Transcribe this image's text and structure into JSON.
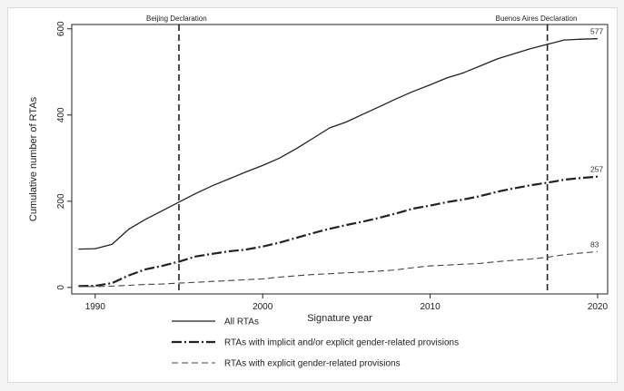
{
  "chart_data": {
    "type": "line",
    "xlabel": "Signature year",
    "ylabel": "Cumulative number of RTAs",
    "xlim": [
      1988.6,
      2020.6
    ],
    "ylim": [
      -15,
      610
    ],
    "x_ticks": [
      1990,
      2000,
      2010,
      2020
    ],
    "y_ticks": [
      0,
      200,
      400,
      600
    ],
    "grid": false,
    "legend_position": "bottom",
    "annotations": [
      {
        "label": "Beijing Declaration",
        "x": 1995
      },
      {
        "label": "Buenos Aires Declaration",
        "x": 2017
      }
    ],
    "series": [
      {
        "name": "All RTAs",
        "style": "solid",
        "end_label": "577",
        "x": [
          1989,
          1990,
          1991,
          1992,
          1993,
          1994,
          1995,
          1996,
          1997,
          1998,
          1999,
          2000,
          2001,
          2002,
          2003,
          2004,
          2005,
          2006,
          2007,
          2008,
          2009,
          2010,
          2011,
          2012,
          2013,
          2014,
          2015,
          2016,
          2017,
          2018,
          2019,
          2020
        ],
        "y": [
          89,
          90,
          100,
          135,
          158,
          178,
          198,
          218,
          236,
          252,
          268,
          283,
          300,
          322,
          346,
          370,
          384,
          402,
          420,
          438,
          455,
          470,
          486,
          498,
          514,
          530,
          542,
          554,
          564,
          574,
          576,
          577
        ]
      },
      {
        "name": "RTAs with implicit and/or explicit gender-related provisions",
        "style": "dashdot",
        "end_label": "257",
        "x": [
          1989,
          1990,
          1991,
          1992,
          1993,
          1994,
          1995,
          1996,
          1997,
          1998,
          1999,
          2000,
          2001,
          2002,
          2003,
          2004,
          2005,
          2006,
          2007,
          2008,
          2009,
          2010,
          2011,
          2012,
          2013,
          2014,
          2015,
          2016,
          2017,
          2018,
          2019,
          2020
        ],
        "y": [
          3,
          4,
          10,
          28,
          42,
          50,
          60,
          72,
          78,
          84,
          88,
          95,
          104,
          115,
          126,
          136,
          145,
          153,
          162,
          172,
          183,
          190,
          198,
          204,
          212,
          222,
          230,
          237,
          243,
          250,
          254,
          257
        ]
      },
      {
        "name": "RTAs with explicit gender-related provisions",
        "style": "dashed",
        "end_label": "83",
        "x": [
          1989,
          1990,
          1991,
          1992,
          1993,
          1994,
          1995,
          1996,
          1997,
          1998,
          1999,
          2000,
          2001,
          2002,
          2003,
          2004,
          2005,
          2006,
          2007,
          2008,
          2009,
          2010,
          2011,
          2012,
          2013,
          2014,
          2015,
          2016,
          2017,
          2018,
          2019,
          2020
        ],
        "y": [
          2,
          2,
          3,
          5,
          7,
          8,
          10,
          12,
          14,
          16,
          18,
          20,
          24,
          27,
          30,
          32,
          34,
          36,
          38,
          41,
          46,
          50,
          52,
          54,
          56,
          60,
          63,
          66,
          70,
          76,
          80,
          83
        ]
      }
    ]
  }
}
